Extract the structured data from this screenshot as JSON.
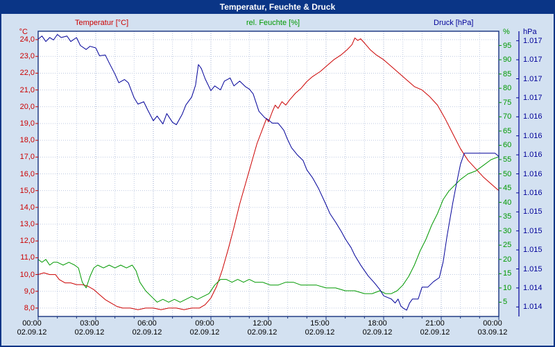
{
  "window": {
    "title": "Temperatur, Feuchte & Druck"
  },
  "colors": {
    "titlebar_bg": "#0a3586",
    "titlebar_text": "#ffffff",
    "background": "#d3e1f1",
    "plot_bg": "#ffffff",
    "plot_border": "#16317d",
    "grid_minor": "#bcc8e0",
    "grid_major": "#9aa8cc",
    "temp": "#cc0000",
    "humidity": "#009900",
    "pressure": "#000099",
    "x_text": "#000000"
  },
  "chart_data": {
    "type": "line",
    "title": "Temperatur, Feuchte & Druck",
    "grid": "on",
    "x_axis": {
      "min": 0,
      "max": 24,
      "tick_step_hours": 1,
      "label_step_hours": 3,
      "tick_times": [
        "00:00",
        "03:00",
        "06:00",
        "09:00",
        "12:00",
        "15:00",
        "18:00",
        "21:00",
        "00:00"
      ],
      "tick_dates": [
        "02.09.12",
        "02.09.12",
        "02.09.12",
        "02.09.12",
        "02.09.12",
        "02.09.12",
        "02.09.12",
        "02.09.12",
        "03.09.12"
      ]
    },
    "y_axes": [
      {
        "id": "temp",
        "title": "Temperatur [°C]",
        "unit": "°C",
        "color": "#cc0000",
        "min": 7.5,
        "max": 24.5,
        "side": "left",
        "tick_labels": [
          "24,0",
          "23,0",
          "22,0",
          "21,0",
          "20,0",
          "19,0",
          "18,0",
          "17,0",
          "16,0",
          "15,0",
          "14,0",
          "13,0",
          "12,0",
          "11,0",
          "10,0",
          "9,0",
          "8,0"
        ]
      },
      {
        "id": "humidity",
        "title": "rel. Feuchte [%]",
        "unit": "%",
        "color": "#009900",
        "min": 0,
        "max": 100,
        "side": "right-inner",
        "tick_labels": [
          "95",
          "90",
          "85",
          "80",
          "75",
          "70",
          "65",
          "60",
          "55",
          "50",
          "45",
          "40",
          "35",
          "30",
          "25",
          "20",
          "15",
          "10",
          "5"
        ]
      },
      {
        "id": "pressure",
        "title": "Druck [hPa]",
        "unit": "hPa",
        "color": "#000099",
        "min": 1013.75,
        "max": 1017.35,
        "side": "right-outer",
        "tick_labels": [
          "1.017",
          "1.017",
          "1.017",
          "1.017",
          "1.016",
          "1.016",
          "1.016",
          "1.016",
          "1.016",
          "1.015",
          "1.015",
          "1.015",
          "1.015",
          "1.014",
          "1.014"
        ]
      }
    ],
    "series": [
      {
        "name": "Temperatur",
        "axis": "temp",
        "unit": "°C",
        "color": "#cc0000",
        "points": [
          [
            0,
            10.0
          ],
          [
            0.3,
            10.1
          ],
          [
            0.6,
            10.0
          ],
          [
            0.9,
            10.0
          ],
          [
            1.1,
            9.7
          ],
          [
            1.4,
            9.5
          ],
          [
            1.7,
            9.5
          ],
          [
            2.0,
            9.4
          ],
          [
            2.3,
            9.4
          ],
          [
            2.6,
            9.3
          ],
          [
            2.9,
            9.1
          ],
          [
            3.2,
            8.8
          ],
          [
            3.5,
            8.5
          ],
          [
            3.8,
            8.3
          ],
          [
            4.1,
            8.1
          ],
          [
            4.4,
            8.0
          ],
          [
            4.8,
            8.0
          ],
          [
            5.2,
            7.9
          ],
          [
            5.6,
            8.0
          ],
          [
            6.0,
            8.0
          ],
          [
            6.4,
            7.9
          ],
          [
            6.8,
            8.0
          ],
          [
            7.2,
            8.0
          ],
          [
            7.6,
            7.9
          ],
          [
            8.0,
            8.0
          ],
          [
            8.4,
            8.0
          ],
          [
            8.7,
            8.2
          ],
          [
            9.0,
            8.6
          ],
          [
            9.3,
            9.3
          ],
          [
            9.6,
            10.3
          ],
          [
            9.9,
            11.5
          ],
          [
            10.2,
            12.8
          ],
          [
            10.5,
            14.2
          ],
          [
            10.8,
            15.4
          ],
          [
            11.1,
            16.6
          ],
          [
            11.4,
            17.8
          ],
          [
            11.7,
            18.7
          ],
          [
            11.9,
            19.3
          ],
          [
            12.0,
            19.1
          ],
          [
            12.2,
            19.7
          ],
          [
            12.35,
            20.1
          ],
          [
            12.5,
            19.9
          ],
          [
            12.7,
            20.3
          ],
          [
            12.9,
            20.1
          ],
          [
            13.1,
            20.4
          ],
          [
            13.4,
            20.8
          ],
          [
            13.7,
            21.1
          ],
          [
            14.0,
            21.5
          ],
          [
            14.3,
            21.8
          ],
          [
            14.7,
            22.1
          ],
          [
            15.0,
            22.4
          ],
          [
            15.4,
            22.8
          ],
          [
            15.8,
            23.1
          ],
          [
            16.1,
            23.4
          ],
          [
            16.35,
            23.7
          ],
          [
            16.5,
            24.1
          ],
          [
            16.65,
            23.95
          ],
          [
            16.8,
            24.05
          ],
          [
            17.0,
            23.8
          ],
          [
            17.3,
            23.4
          ],
          [
            17.6,
            23.1
          ],
          [
            18.0,
            22.8
          ],
          [
            18.4,
            22.4
          ],
          [
            18.8,
            22.0
          ],
          [
            19.2,
            21.6
          ],
          [
            19.6,
            21.2
          ],
          [
            20.0,
            21.0
          ],
          [
            20.4,
            20.6
          ],
          [
            20.8,
            20.1
          ],
          [
            21.2,
            19.3
          ],
          [
            21.6,
            18.4
          ],
          [
            22.0,
            17.5
          ],
          [
            22.4,
            16.8
          ],
          [
            22.8,
            16.3
          ],
          [
            23.2,
            15.8
          ],
          [
            23.6,
            15.4
          ],
          [
            24.0,
            15.0
          ]
        ]
      },
      {
        "name": "rel. Feuchte",
        "axis": "humidity",
        "unit": "%",
        "color": "#009900",
        "points": [
          [
            0,
            20
          ],
          [
            0.2,
            19
          ],
          [
            0.4,
            20
          ],
          [
            0.6,
            18
          ],
          [
            0.8,
            19
          ],
          [
            1.0,
            19
          ],
          [
            1.3,
            18
          ],
          [
            1.6,
            19
          ],
          [
            1.9,
            18
          ],
          [
            2.1,
            17
          ],
          [
            2.3,
            12
          ],
          [
            2.5,
            10
          ],
          [
            2.7,
            14
          ],
          [
            2.9,
            17
          ],
          [
            3.1,
            18
          ],
          [
            3.4,
            17
          ],
          [
            3.7,
            18
          ],
          [
            4.0,
            17
          ],
          [
            4.3,
            18
          ],
          [
            4.6,
            17
          ],
          [
            4.9,
            18
          ],
          [
            5.1,
            16
          ],
          [
            5.3,
            12
          ],
          [
            5.6,
            9
          ],
          [
            5.9,
            7
          ],
          [
            6.2,
            5
          ],
          [
            6.5,
            6
          ],
          [
            6.8,
            5
          ],
          [
            7.1,
            6
          ],
          [
            7.4,
            5
          ],
          [
            7.7,
            6
          ],
          [
            8.0,
            7
          ],
          [
            8.3,
            6
          ],
          [
            8.6,
            7
          ],
          [
            8.9,
            8
          ],
          [
            9.2,
            11
          ],
          [
            9.5,
            13
          ],
          [
            9.8,
            13
          ],
          [
            10.1,
            12
          ],
          [
            10.4,
            13
          ],
          [
            10.7,
            12
          ],
          [
            11.0,
            13
          ],
          [
            11.3,
            12
          ],
          [
            11.7,
            12
          ],
          [
            12.1,
            11
          ],
          [
            12.5,
            11
          ],
          [
            12.9,
            12
          ],
          [
            13.3,
            12
          ],
          [
            13.7,
            11
          ],
          [
            14.1,
            11
          ],
          [
            14.5,
            11
          ],
          [
            15.0,
            10
          ],
          [
            15.5,
            10
          ],
          [
            16.0,
            9
          ],
          [
            16.5,
            9
          ],
          [
            17.0,
            8
          ],
          [
            17.4,
            8
          ],
          [
            17.8,
            9
          ],
          [
            18.1,
            8
          ],
          [
            18.4,
            8
          ],
          [
            18.7,
            9
          ],
          [
            19.0,
            11
          ],
          [
            19.3,
            14
          ],
          [
            19.6,
            18
          ],
          [
            19.9,
            23
          ],
          [
            20.2,
            27
          ],
          [
            20.5,
            32
          ],
          [
            20.8,
            36
          ],
          [
            21.1,
            41
          ],
          [
            21.4,
            44
          ],
          [
            21.7,
            46
          ],
          [
            22.0,
            48
          ],
          [
            22.4,
            50
          ],
          [
            22.8,
            51
          ],
          [
            23.2,
            53
          ],
          [
            23.6,
            55
          ],
          [
            24.0,
            56
          ]
        ]
      },
      {
        "name": "Druck",
        "axis": "pressure",
        "unit": "hPa",
        "color": "#000099",
        "points": [
          [
            0,
            1017.25
          ],
          [
            0.2,
            1017.29
          ],
          [
            0.4,
            1017.22
          ],
          [
            0.6,
            1017.27
          ],
          [
            0.8,
            1017.24
          ],
          [
            1.0,
            1017.31
          ],
          [
            1.2,
            1017.27
          ],
          [
            1.5,
            1017.29
          ],
          [
            1.7,
            1017.22
          ],
          [
            2.0,
            1017.27
          ],
          [
            2.2,
            1017.17
          ],
          [
            2.5,
            1017.12
          ],
          [
            2.7,
            1017.16
          ],
          [
            3.0,
            1017.14
          ],
          [
            3.2,
            1017.04
          ],
          [
            3.5,
            1017.05
          ],
          [
            3.7,
            1016.95
          ],
          [
            4.0,
            1016.81
          ],
          [
            4.2,
            1016.7
          ],
          [
            4.5,
            1016.74
          ],
          [
            4.7,
            1016.7
          ],
          [
            5.0,
            1016.51
          ],
          [
            5.2,
            1016.43
          ],
          [
            5.5,
            1016.46
          ],
          [
            5.7,
            1016.36
          ],
          [
            6.0,
            1016.22
          ],
          [
            6.2,
            1016.28
          ],
          [
            6.5,
            1016.18
          ],
          [
            6.7,
            1016.31
          ],
          [
            7.0,
            1016.2
          ],
          [
            7.2,
            1016.17
          ],
          [
            7.5,
            1016.3
          ],
          [
            7.7,
            1016.42
          ],
          [
            8.0,
            1016.52
          ],
          [
            8.2,
            1016.67
          ],
          [
            8.35,
            1016.93
          ],
          [
            8.5,
            1016.88
          ],
          [
            8.7,
            1016.75
          ],
          [
            9.0,
            1016.6
          ],
          [
            9.2,
            1016.66
          ],
          [
            9.5,
            1016.61
          ],
          [
            9.7,
            1016.72
          ],
          [
            10.0,
            1016.76
          ],
          [
            10.2,
            1016.66
          ],
          [
            10.5,
            1016.72
          ],
          [
            10.8,
            1016.65
          ],
          [
            11.0,
            1016.62
          ],
          [
            11.2,
            1016.56
          ],
          [
            11.5,
            1016.34
          ],
          [
            11.8,
            1016.26
          ],
          [
            12.0,
            1016.23
          ],
          [
            12.2,
            1016.19
          ],
          [
            12.5,
            1016.19
          ],
          [
            12.8,
            1016.1
          ],
          [
            13.0,
            1015.98
          ],
          [
            13.2,
            1015.88
          ],
          [
            13.5,
            1015.79
          ],
          [
            13.8,
            1015.72
          ],
          [
            14.0,
            1015.6
          ],
          [
            14.3,
            1015.5
          ],
          [
            14.6,
            1015.37
          ],
          [
            15.0,
            1015.16
          ],
          [
            15.2,
            1015.05
          ],
          [
            15.5,
            1014.94
          ],
          [
            15.8,
            1014.82
          ],
          [
            16.0,
            1014.73
          ],
          [
            16.3,
            1014.62
          ],
          [
            16.5,
            1014.52
          ],
          [
            16.8,
            1014.4
          ],
          [
            17.0,
            1014.33
          ],
          [
            17.2,
            1014.26
          ],
          [
            17.5,
            1014.18
          ],
          [
            17.8,
            1014.09
          ],
          [
            18.0,
            1014.01
          ],
          [
            18.2,
            1013.99
          ],
          [
            18.4,
            1013.97
          ],
          [
            18.6,
            1013.92
          ],
          [
            18.75,
            1013.97
          ],
          [
            18.9,
            1013.88
          ],
          [
            19.05,
            1013.85
          ],
          [
            19.2,
            1013.83
          ],
          [
            19.35,
            1013.92
          ],
          [
            19.5,
            1013.97
          ],
          [
            19.8,
            1013.97
          ],
          [
            20.0,
            1014.12
          ],
          [
            20.3,
            1014.12
          ],
          [
            20.6,
            1014.19
          ],
          [
            20.9,
            1014.24
          ],
          [
            21.1,
            1014.44
          ],
          [
            21.3,
            1014.76
          ],
          [
            21.6,
            1015.18
          ],
          [
            21.8,
            1015.43
          ],
          [
            22.0,
            1015.67
          ],
          [
            22.2,
            1015.81
          ],
          [
            22.6,
            1015.81
          ],
          [
            23.0,
            1015.81
          ],
          [
            23.4,
            1015.81
          ],
          [
            23.8,
            1015.81
          ],
          [
            24.0,
            1015.77
          ]
        ]
      }
    ]
  }
}
